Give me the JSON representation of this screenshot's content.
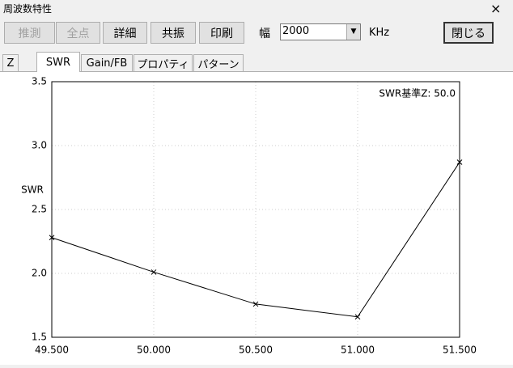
{
  "window": {
    "title": "周波数特性",
    "close": "×"
  },
  "toolbar": {
    "buttons": [
      {
        "label": "推測",
        "enabled": false
      },
      {
        "label": "全点",
        "enabled": false
      },
      {
        "label": "詳細",
        "enabled": true
      },
      {
        "label": "共振",
        "enabled": true
      },
      {
        "label": "印刷",
        "enabled": true
      }
    ],
    "width_label": "幅",
    "width_value": "2000",
    "unit": "KHz",
    "close_button": "閉じる"
  },
  "tabs": {
    "items": [
      "Z",
      "SWR",
      "Gain/FB",
      "プロパティ",
      "パターン"
    ],
    "active": 1
  },
  "chart_data": {
    "type": "line",
    "annotation": "SWR基準Z: 50.0",
    "y_label": "SWR",
    "x": [
      49.5,
      50.0,
      50.5,
      51.0,
      51.5
    ],
    "values": [
      2.28,
      2.01,
      1.76,
      1.66,
      2.87
    ],
    "color": "#000000",
    "marker": "x",
    "xlim": [
      49.5,
      51.5
    ],
    "xticks": [
      {
        "value": 49.5,
        "label": "49.500"
      },
      {
        "value": 50.0,
        "label": "50.000"
      },
      {
        "value": 50.5,
        "label": "50.500"
      },
      {
        "value": 51.0,
        "label": "51.000"
      },
      {
        "value": 51.5,
        "label": "51.500"
      }
    ],
    "ylim": [
      1.5,
      3.5
    ],
    "yticks": [
      1.5,
      {
        "value": 2.0,
        "label": "2.0"
      },
      2.5,
      {
        "value": 3.0,
        "label": "3.0"
      },
      3.5
    ],
    "grid": true
  }
}
